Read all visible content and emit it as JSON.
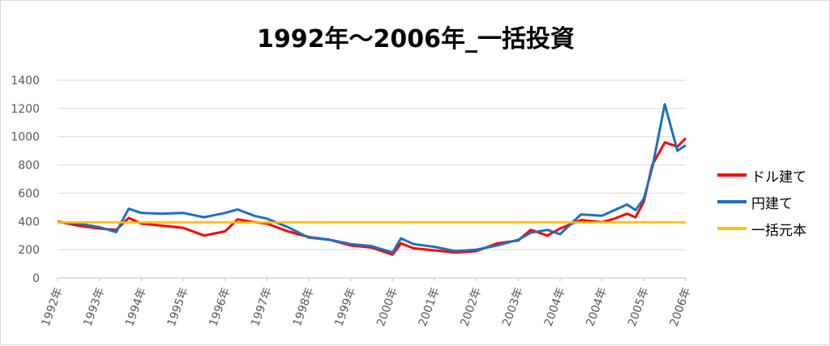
{
  "chart_data": {
    "type": "line",
    "title": "1992年～2006年_一括投資",
    "xlabel": "",
    "ylabel": "",
    "ylim": [
      0,
      1400
    ],
    "yticks": [
      0,
      200,
      400,
      600,
      800,
      1000,
      1200,
      1400
    ],
    "grid": true,
    "legend_position": "right",
    "x_tick_labels": [
      "1992年",
      "1993年",
      "1994年",
      "1995年",
      "1996年",
      "1997年",
      "1998年",
      "1999年",
      "2000年",
      "2001年",
      "2002年",
      "2003年",
      "2004年",
      "2004年",
      "2005年",
      "2006年"
    ],
    "x": [
      1992.0,
      1992.5,
      1993.0,
      1993.4,
      1993.7,
      1994.0,
      1994.5,
      1995.0,
      1995.5,
      1996.0,
      1996.3,
      1996.7,
      1997.0,
      1997.5,
      1998.0,
      1998.5,
      1999.0,
      1999.5,
      2000.0,
      2000.2,
      2000.5,
      2001.0,
      2001.5,
      2002.0,
      2002.5,
      2003.0,
      2003.3,
      2003.7,
      2004.0,
      2004.5,
      2005.0,
      2005.3,
      2005.6,
      2005.8,
      2006.0,
      2006.2,
      2006.5,
      2006.8,
      2007.0
    ],
    "series": [
      {
        "name": "ドル建て",
        "color": "#ff0000",
        "values": [
          400,
          370,
          350,
          340,
          425,
          385,
          370,
          355,
          300,
          330,
          415,
          395,
          385,
          330,
          290,
          270,
          230,
          215,
          165,
          245,
          210,
          195,
          180,
          190,
          245,
          265,
          340,
          300,
          350,
          410,
          395,
          420,
          455,
          430,
          540,
          800,
          960,
          930,
          990
        ]
      },
      {
        "name": "円建て",
        "color": "#1f6fbf",
        "values": [
          395,
          385,
          360,
          325,
          490,
          460,
          455,
          460,
          430,
          460,
          485,
          440,
          420,
          360,
          285,
          270,
          240,
          225,
          180,
          280,
          240,
          220,
          190,
          200,
          230,
          270,
          320,
          340,
          310,
          450,
          440,
          480,
          520,
          480,
          560,
          780,
          1230,
          900,
          940
        ]
      },
      {
        "name": "一括元本",
        "color": "#ffc000",
        "values": [
          393,
          393,
          393,
          393,
          393,
          393,
          393,
          393,
          393,
          393,
          393,
          393,
          393,
          393,
          393,
          393,
          393,
          393,
          393,
          393,
          393,
          393,
          393,
          393,
          393,
          393,
          393,
          393,
          393,
          393,
          393,
          393,
          393,
          393,
          393,
          393,
          393,
          393,
          393
        ]
      }
    ]
  }
}
